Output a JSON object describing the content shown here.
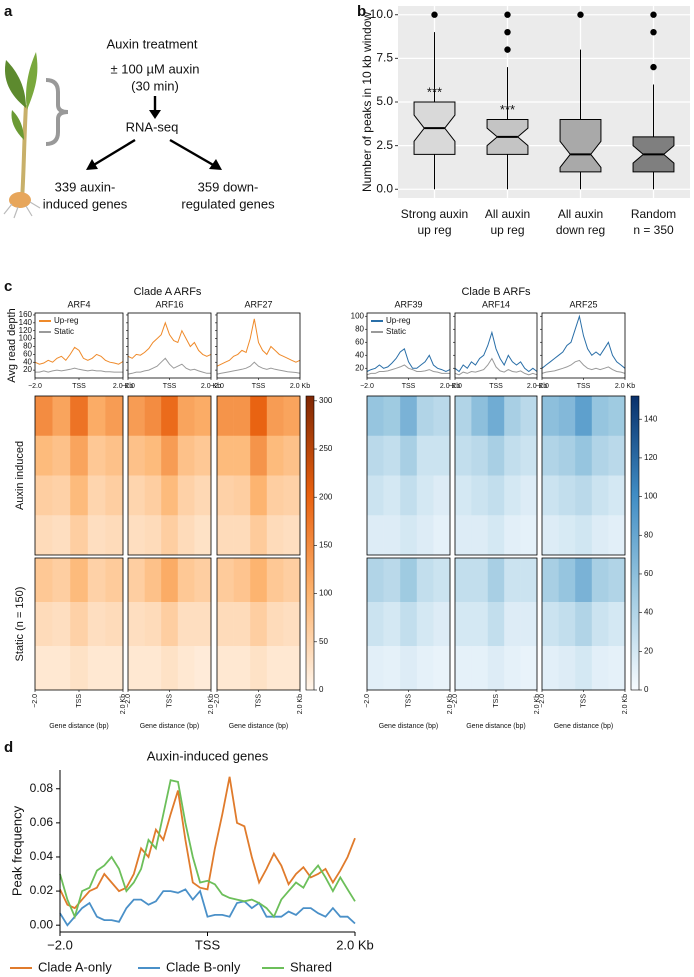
{
  "panel_labels": [
    "a",
    "b",
    "c",
    "d"
  ],
  "diagram": {
    "title": "Auxin treatment",
    "treatment": [
      "± 100 µM auxin",
      "(30 min)"
    ],
    "assay": "RNA-seq",
    "outcomes": [
      [
        "339 auxin-",
        "induced genes"
      ],
      [
        "359 down-",
        "regulated genes"
      ]
    ]
  },
  "chart_data": [
    {
      "type": "box",
      "ylabel": "Number of peaks in 10 kb window",
      "categories": [
        [
          "Strong auxin",
          "up reg"
        ],
        [
          "All auxin",
          "up reg"
        ],
        [
          "All auxin",
          "down reg"
        ],
        [
          "Random",
          "n = 350"
        ]
      ],
      "boxes": [
        {
          "whislo": 0,
          "q1": 2,
          "median": 3.5,
          "q3": 5,
          "whishi": 9,
          "fliers": [
            10
          ],
          "color": "#d9d9d9",
          "annotation": "***"
        },
        {
          "whislo": 0,
          "q1": 2,
          "median": 3,
          "q3": 4,
          "whishi": 7,
          "fliers": [
            8,
            9,
            10
          ],
          "color": "#c4c4c4",
          "annotation": "***"
        },
        {
          "whislo": 0,
          "q1": 1,
          "median": 2,
          "q3": 4,
          "whishi": 8,
          "fliers": [
            10
          ],
          "color": "#a9a9a9"
        },
        {
          "whislo": 0,
          "q1": 1,
          "median": 2,
          "q3": 3,
          "whishi": 6,
          "fliers": [
            7,
            9,
            10
          ],
          "color": "#7f7f7f"
        }
      ],
      "ylim": [
        -0.5,
        10.5
      ],
      "yticks": [
        {
          "value": 0,
          "label": "0.0"
        },
        {
          "value": 2.5,
          "label": "2.5"
        },
        {
          "value": 5,
          "label": "5.0"
        },
        {
          "value": 7.5,
          "label": "7.5"
        },
        {
          "value": 10,
          "label": "10.0"
        }
      ],
      "grid": true
    },
    {
      "type": "profile-heatmap",
      "title": "Clade A ARFs",
      "ylabel": "Avg read depth",
      "xlabel": "Gene distance (bp)",
      "x": [
        -2,
        -1.8,
        -1.6,
        -1.4,
        -1.2,
        -1,
        -0.8,
        -0.6,
        -0.4,
        -0.2,
        0,
        0.2,
        0.4,
        0.6,
        0.8,
        1,
        1.2,
        1.4,
        1.6,
        1.8,
        2
      ],
      "xlim": [
        -2,
        2
      ],
      "xticks": [
        {
          "value": -2,
          "label": "−2.0"
        },
        {
          "value": 0,
          "label": "TSS"
        },
        {
          "value": 2,
          "label": "2.0 Kb"
        }
      ],
      "ylim": [
        0,
        165
      ],
      "yticks": [
        20,
        40,
        60,
        80,
        100,
        120,
        140,
        160
      ],
      "series": [
        {
          "name": "Up-reg",
          "color": "#ef8a2a"
        },
        {
          "name": "Static",
          "color": "#9a9a9a"
        }
      ],
      "row_labels": [
        "Auxin induced",
        "Static (n = 150)"
      ],
      "colorscale": [
        "#fff5eb",
        "#fdb36e",
        "#e8600f",
        "#7f2704"
      ],
      "clim": [
        0,
        305
      ],
      "cticks": [
        0,
        50,
        100,
        150,
        200,
        250,
        300
      ],
      "panels": [
        {
          "title": "ARF4",
          "values": [
            [
              40,
              35,
              38,
              45,
              40,
              50,
              55,
              45,
              60,
              78,
              70,
              50,
              45,
              50,
              60,
              55,
              45,
              40,
              38,
              35,
              42
            ],
            [
              15,
              15,
              18,
              15,
              18,
              20,
              18,
              20,
              22,
              25,
              22,
              20,
              18,
              20,
              18,
              18,
              16,
              16,
              15,
              15,
              15
            ]
          ],
          "auxin": [
            [
              150,
              120,
              180,
              110,
              130
            ],
            [
              90,
              80,
              120,
              70,
              80
            ],
            [
              60,
              55,
              90,
              50,
              60
            ],
            [
              40,
              35,
              60,
              35,
              40
            ]
          ],
          "static": [
            [
              70,
              60,
              90,
              55,
              65
            ],
            [
              40,
              35,
              55,
              35,
              40
            ],
            [
              20,
              20,
              30,
              20,
              20
            ]
          ]
        },
        {
          "title": "ARF16",
          "values": [
            [
              55,
              50,
              60,
              58,
              65,
              75,
              90,
              100,
              110,
              140,
              110,
              95,
              90,
              120,
              100,
              80,
              90,
              70,
              60,
              55,
              60
            ],
            [
              10,
              12,
              15,
              15,
              18,
              20,
              25,
              30,
              40,
              50,
              35,
              25,
              30,
              35,
              25,
              20,
              22,
              18,
              15,
              12,
              12
            ]
          ],
          "auxin": [
            [
              130,
              150,
              190,
              120,
              110
            ],
            [
              80,
              90,
              130,
              80,
              70
            ],
            [
              50,
              60,
              90,
              55,
              45
            ],
            [
              35,
              40,
              60,
              40,
              30
            ]
          ],
          "static": [
            [
              60,
              80,
              110,
              70,
              60
            ],
            [
              35,
              40,
              60,
              35,
              35
            ],
            [
              20,
              20,
              30,
              20,
              15
            ]
          ]
        },
        {
          "title": "ARF27",
          "values": [
            [
              30,
              35,
              40,
              45,
              55,
              60,
              70,
              65,
              100,
              150,
              90,
              70,
              60,
              80,
              70,
              60,
              55,
              50,
              45,
              40,
              45
            ],
            [
              10,
              12,
              14,
              16,
              18,
              20,
              22,
              25,
              30,
              40,
              30,
              25,
              22,
              25,
              22,
              20,
              18,
              16,
              15,
              14,
              12
            ]
          ],
          "auxin": [
            [
              140,
              140,
              200,
              130,
              120
            ],
            [
              90,
              90,
              140,
              90,
              80
            ],
            [
              55,
              60,
              100,
              60,
              55
            ],
            [
              40,
              40,
              65,
              40,
              35
            ]
          ],
          "static": [
            [
              65,
              75,
              100,
              70,
              60
            ],
            [
              40,
              40,
              60,
              40,
              35
            ],
            [
              20,
              20,
              30,
              20,
              20
            ]
          ]
        }
      ]
    },
    {
      "type": "profile-heatmap",
      "title": "Clade B ARFs",
      "xlabel": "Gene distance (bp)",
      "x": [
        -2,
        -1.8,
        -1.6,
        -1.4,
        -1.2,
        -1,
        -0.8,
        -0.6,
        -0.4,
        -0.2,
        0,
        0.2,
        0.4,
        0.6,
        0.8,
        1,
        1.2,
        1.4,
        1.6,
        1.8,
        2
      ],
      "xlim": [
        -2,
        2
      ],
      "xticks": [
        {
          "value": -2,
          "label": "−2.0"
        },
        {
          "value": 0,
          "label": "TSS"
        },
        {
          "value": 2,
          "label": "2.0 Kb"
        }
      ],
      "ylim": [
        5,
        105
      ],
      "yticks": [
        20,
        40,
        60,
        80,
        100
      ],
      "series": [
        {
          "name": "Up-reg",
          "color": "#2a6fa8"
        },
        {
          "name": "Static",
          "color": "#9a9a9a"
        }
      ],
      "colorscale": [
        "#f7fbff",
        "#9ecae1",
        "#3f8cc4",
        "#08306b"
      ],
      "clim": [
        0,
        152
      ],
      "cticks": [
        0,
        20,
        40,
        60,
        80,
        100,
        120,
        140
      ],
      "panels": [
        {
          "title": "ARF39",
          "values": [
            [
              15,
              18,
              20,
              25,
              20,
              22,
              28,
              35,
              45,
              50,
              30,
              20,
              20,
              25,
              30,
              40,
              25,
              20,
              18,
              15,
              18
            ],
            [
              10,
              12,
              12,
              15,
              15,
              16,
              18,
              20,
              22,
              25,
              20,
              18,
              15,
              15,
              16,
              18,
              15,
              14,
              12,
              12,
              12
            ]
          ],
          "auxin": [
            [
              55,
              50,
              70,
              40,
              35
            ],
            [
              35,
              30,
              45,
              25,
              25
            ],
            [
              25,
              20,
              30,
              20,
              15
            ],
            [
              15,
              15,
              20,
              15,
              10
            ]
          ],
          "static": [
            [
              40,
              35,
              50,
              30,
              25
            ],
            [
              25,
              20,
              30,
              20,
              15
            ],
            [
              12,
              10,
              15,
              10,
              8
            ]
          ]
        },
        {
          "title": "ARF14",
          "values": [
            [
              20,
              15,
              25,
              20,
              30,
              25,
              35,
              40,
              55,
              75,
              50,
              35,
              25,
              40,
              30,
              25,
              30,
              20,
              15,
              20,
              15
            ],
            [
              12,
              10,
              14,
              12,
              15,
              14,
              16,
              18,
              25,
              35,
              22,
              16,
              14,
              18,
              15,
              14,
              16,
              12,
              10,
              12,
              10
            ]
          ],
          "auxin": [
            [
              40,
              60,
              75,
              45,
              35
            ],
            [
              30,
              35,
              45,
              30,
              25
            ],
            [
              20,
              25,
              30,
              20,
              15
            ],
            [
              15,
              15,
              20,
              12,
              10
            ]
          ],
          "static": [
            [
              30,
              30,
              45,
              25,
              25
            ],
            [
              20,
              20,
              30,
              15,
              15
            ],
            [
              10,
              10,
              15,
              10,
              8
            ]
          ]
        },
        {
          "title": "ARF25",
          "values": [
            [
              20,
              25,
              30,
              35,
              40,
              45,
              55,
              60,
              80,
              100,
              70,
              50,
              40,
              45,
              40,
              50,
              60,
              40,
              30,
              25,
              20
            ],
            [
              12,
              14,
              15,
              16,
              18,
              20,
              22,
              25,
              30,
              32,
              25,
              20,
              18,
              20,
              18,
              20,
              22,
              18,
              15,
              14,
              12
            ]
          ],
          "auxin": [
            [
              60,
              65,
              85,
              55,
              50
            ],
            [
              40,
              45,
              55,
              40,
              35
            ],
            [
              25,
              30,
              35,
              25,
              20
            ],
            [
              15,
              18,
              22,
              15,
              12
            ]
          ],
          "static": [
            [
              45,
              55,
              70,
              45,
              40
            ],
            [
              25,
              30,
              40,
              25,
              20
            ],
            [
              12,
              15,
              20,
              12,
              10
            ]
          ]
        }
      ]
    },
    {
      "type": "line",
      "title": "Auxin-induced genes",
      "ylabel": "Peak frequency",
      "x": [
        -2,
        -1.9,
        -1.8,
        -1.7,
        -1.6,
        -1.5,
        -1.4,
        -1.3,
        -1.2,
        -1.1,
        -1,
        -0.9,
        -0.8,
        -0.7,
        -0.6,
        -0.5,
        -0.4,
        -0.3,
        -0.2,
        -0.1,
        0,
        0.1,
        0.2,
        0.3,
        0.4,
        0.5,
        0.6,
        0.7,
        0.8,
        0.9,
        1,
        1.1,
        1.2,
        1.3,
        1.4,
        1.5,
        1.6,
        1.7,
        1.8,
        1.9,
        2
      ],
      "xlim": [
        -2,
        2
      ],
      "xticks": [
        {
          "value": -2,
          "label": "−2.0"
        },
        {
          "value": 0,
          "label": "TSS"
        },
        {
          "value": 2,
          "label": "2.0 Kb"
        }
      ],
      "ylim": [
        -0.004,
        0.091
      ],
      "yticks": [
        {
          "value": 0,
          "label": "0.00"
        },
        {
          "value": 0.02,
          "label": "0.02"
        },
        {
          "value": 0.04,
          "label": "0.04"
        },
        {
          "value": 0.06,
          "label": "0.06"
        },
        {
          "value": 0.08,
          "label": "0.08"
        }
      ],
      "series": [
        {
          "name": "Clade A-only",
          "color": "#e07b2c",
          "values": [
            0.021,
            0.012,
            0.01,
            0.015,
            0.02,
            0.022,
            0.03,
            0.025,
            0.02,
            0.022,
            0.03,
            0.045,
            0.04,
            0.056,
            0.05,
            0.065,
            0.079,
            0.05,
            0.025,
            0.022,
            0.021,
            0.045,
            0.065,
            0.087,
            0.06,
            0.058,
            0.04,
            0.025,
            0.033,
            0.042,
            0.035,
            0.024,
            0.03,
            0.034,
            0.028,
            0.03,
            0.033,
            0.025,
            0.032,
            0.04,
            0.051
          ]
        },
        {
          "name": "Clade B-only",
          "color": "#4a90c8",
          "values": [
            0.007,
            0.0,
            0.005,
            0.01,
            0.013,
            0.005,
            0.003,
            0.003,
            0.002,
            0.01,
            0.015,
            0.015,
            0.012,
            0.014,
            0.02,
            0.02,
            0.019,
            0.021,
            0.015,
            0.02,
            0.005,
            0.006,
            0.006,
            0.005,
            0.013,
            0.014,
            0.01,
            0.013,
            0.005,
            0.005,
            0.005,
            0.008,
            0.006,
            0.01,
            0.01,
            0.007,
            0.005,
            0.01,
            0.005,
            0.005,
            0.001
          ]
        },
        {
          "name": "Shared",
          "color": "#6cbf5a",
          "values": [
            0.03,
            0.015,
            0.005,
            0.02,
            0.022,
            0.032,
            0.035,
            0.04,
            0.033,
            0.02,
            0.025,
            0.033,
            0.05,
            0.045,
            0.065,
            0.085,
            0.084,
            0.06,
            0.04,
            0.025,
            0.026,
            0.024,
            0.018,
            0.016,
            0.015,
            0.014,
            0.015,
            0.013,
            0.01,
            0.005,
            0.015,
            0.02,
            0.025,
            0.022,
            0.03,
            0.035,
            0.028,
            0.02,
            0.028,
            0.021,
            0.014
          ]
        }
      ],
      "legend": "bottom"
    }
  ]
}
